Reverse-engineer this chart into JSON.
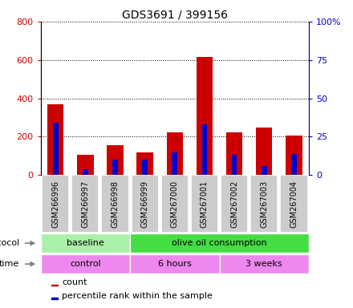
{
  "title": "GDS3691 / 399156",
  "samples": [
    "GSM266996",
    "GSM266997",
    "GSM266998",
    "GSM266999",
    "GSM267000",
    "GSM267001",
    "GSM267002",
    "GSM267003",
    "GSM267004"
  ],
  "count_values": [
    370,
    108,
    155,
    120,
    225,
    615,
    225,
    247,
    205
  ],
  "percentile_values": [
    34,
    4,
    10,
    10,
    15,
    33,
    13,
    6,
    14
  ],
  "count_color": "#cc0000",
  "percentile_color": "#0000cc",
  "ylim_left": [
    0,
    800
  ],
  "ylim_right": [
    0,
    100
  ],
  "yticks_left": [
    0,
    200,
    400,
    600,
    800
  ],
  "ytick_labels_left": [
    "0",
    "200",
    "400",
    "600",
    "800"
  ],
  "yticks_right": [
    0,
    25,
    50,
    75,
    100
  ],
  "ytick_labels_right": [
    "0",
    "25",
    "50",
    "75",
    "100%"
  ],
  "protocol_baseline_label": "baseline",
  "protocol_olive_label": "olive oil consumption",
  "protocol_baseline_color": "#aaf0aa",
  "protocol_olive_color": "#44dd44",
  "time_control_label": "control",
  "time_6h_label": "6 hours",
  "time_3w_label": "3 weeks",
  "time_color": "#ee88ee",
  "legend_count_label": "count",
  "legend_percentile_label": "percentile rank within the sample",
  "red_bar_width": 0.55,
  "blue_bar_width": 0.18,
  "sample_box_color": "#cccccc",
  "title_fontsize": 10,
  "axis_label_fontsize": 8,
  "annotation_fontsize": 8
}
